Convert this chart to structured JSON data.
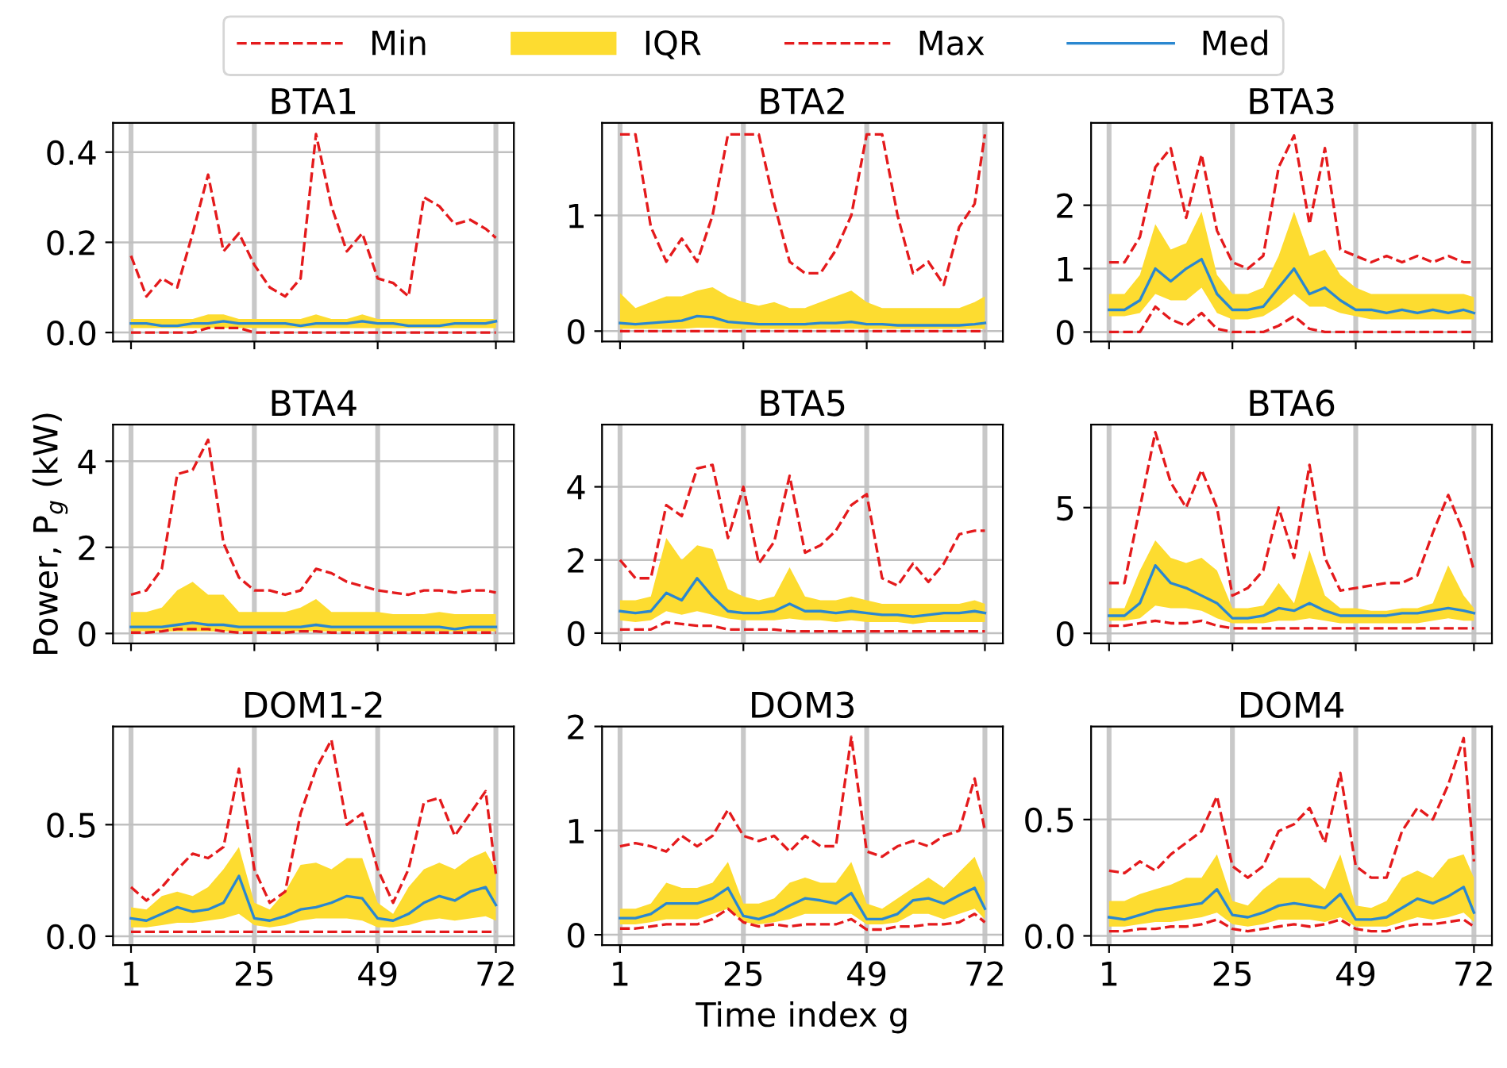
{
  "chart_data": [
    {
      "type": "line",
      "title": "BTA1",
      "legend": "top",
      "grid": true,
      "tick_labels": "y",
      "x": [
        1,
        4,
        7,
        10,
        13,
        16,
        19,
        22,
        25,
        28,
        31,
        34,
        37,
        40,
        43,
        46,
        49,
        52,
        55,
        58,
        61,
        64,
        67,
        70,
        72
      ],
      "xlim": [
        -2.5,
        75.5
      ],
      "xticks": [
        1,
        25,
        49,
        72
      ],
      "ylim": [
        -0.02,
        0.465
      ],
      "yticks": [
        {
          "value": 0,
          "label": "0.0"
        },
        {
          "value": 0.2,
          "label": "0.2"
        },
        {
          "value": 0.4,
          "label": "0.4"
        }
      ],
      "series": [
        {
          "name": "Min",
          "color": "#e41a1c",
          "line_style": "dashed",
          "values": [
            0.0,
            0.0,
            0.0,
            0.0,
            0.0,
            0.01,
            0.01,
            0.01,
            0.0,
            0.0,
            0.0,
            0.0,
            0.0,
            0.0,
            0.0,
            0.0,
            0.0,
            0.0,
            0.0,
            0.0,
            0.0,
            0.0,
            0.0,
            0.0,
            0.0
          ]
        },
        {
          "name": "IQR",
          "type": "area",
          "color": "#fddc30",
          "values": [
            null,
            null,
            null,
            null,
            null,
            null,
            null,
            null,
            null,
            null,
            null,
            null,
            null,
            null,
            null,
            null,
            null,
            null,
            null,
            null,
            null,
            null,
            null,
            null,
            null
          ]
        },
        {
          "name": "Max",
          "color": "#e41a1c",
          "line_style": "dashed",
          "values": [
            0.17,
            0.08,
            0.12,
            0.1,
            0.22,
            0.35,
            0.18,
            0.22,
            0.15,
            0.1,
            0.08,
            0.12,
            0.44,
            0.28,
            0.18,
            0.22,
            0.12,
            0.11,
            0.08,
            0.3,
            0.28,
            0.24,
            0.25,
            0.23,
            0.21
          ]
        },
        {
          "name": "Med",
          "color": "#2a87d0",
          "line_style": "solid",
          "values": [
            0.02,
            0.02,
            0.015,
            0.015,
            0.02,
            0.02,
            0.025,
            0.02,
            0.02,
            0.02,
            0.02,
            0.015,
            0.02,
            0.02,
            0.02,
            0.025,
            0.02,
            0.02,
            0.015,
            0.015,
            0.015,
            0.02,
            0.02,
            0.02,
            0.025
          ],
          "lower": [
            0.01,
            0.01,
            0.01,
            0.01,
            0.01,
            0.01,
            0.01,
            0.01,
            0.01,
            0.01,
            0.01,
            0.01,
            0.01,
            0.01,
            0.01,
            0.01,
            0.01,
            0.01,
            0.01,
            0.01,
            0.01,
            0.01,
            0.01,
            0.01,
            0.01
          ],
          "upper": [
            0.03,
            0.03,
            0.03,
            0.03,
            0.03,
            0.04,
            0.04,
            0.03,
            0.03,
            0.03,
            0.03,
            0.03,
            0.04,
            0.03,
            0.03,
            0.04,
            0.03,
            0.03,
            0.03,
            0.03,
            0.03,
            0.03,
            0.03,
            0.03,
            0.03
          ]
        }
      ]
    },
    {
      "type": "line",
      "title": "BTA2",
      "grid": true,
      "tick_labels": "y",
      "x": [
        1,
        4,
        7,
        10,
        13,
        16,
        19,
        22,
        25,
        28,
        31,
        34,
        37,
        40,
        43,
        46,
        49,
        52,
        55,
        58,
        61,
        64,
        67,
        70,
        72
      ],
      "xlim": [
        -2.5,
        75.5
      ],
      "xticks": [
        1,
        25,
        49,
        72
      ],
      "ylim": [
        -0.09,
        1.8
      ],
      "yticks": [
        0,
        1
      ],
      "series": [
        {
          "name": "Min",
          "color": "#e41a1c",
          "line_style": "dashed",
          "values": [
            0.0,
            0.0,
            0.0,
            0.0,
            0.0,
            0.0,
            0.0,
            0.0,
            0.0,
            0.0,
            0.0,
            0.0,
            0.0,
            0.0,
            0.0,
            0.0,
            0.0,
            0.0,
            0.0,
            0.0,
            0.0,
            0.0,
            0.0,
            0.0,
            0.0
          ]
        },
        {
          "type": "area",
          "color": "#fddc30",
          "values": [
            null,
            null,
            null,
            null,
            null,
            null,
            null,
            null,
            null,
            null,
            null,
            null,
            null,
            null,
            null,
            null,
            null,
            null,
            null,
            null,
            null,
            null,
            null,
            null,
            null
          ]
        },
        {
          "name": "Max",
          "color": "#e41a1c",
          "line_style": "dashed",
          "values": [
            1.7,
            1.7,
            0.9,
            0.6,
            0.8,
            0.6,
            1.0,
            1.7,
            1.7,
            1.7,
            1.1,
            0.6,
            0.5,
            0.5,
            0.7,
            1.0,
            1.7,
            1.7,
            1.0,
            0.5,
            0.6,
            0.4,
            0.9,
            1.1,
            1.7
          ]
        },
        {
          "name": "Med",
          "color": "#2a87d0",
          "line_style": "solid",
          "values": [
            0.07,
            0.06,
            0.07,
            0.08,
            0.09,
            0.13,
            0.12,
            0.08,
            0.07,
            0.06,
            0.06,
            0.06,
            0.06,
            0.07,
            0.07,
            0.08,
            0.06,
            0.06,
            0.05,
            0.05,
            0.05,
            0.05,
            0.05,
            0.06,
            0.07
          ],
          "lower": [
            0.02,
            0.02,
            0.02,
            0.02,
            0.02,
            0.03,
            0.03,
            0.02,
            0.02,
            0.02,
            0.02,
            0.02,
            0.02,
            0.02,
            0.02,
            0.02,
            0.02,
            0.02,
            0.02,
            0.02,
            0.02,
            0.02,
            0.02,
            0.02,
            0.02
          ],
          "upper": [
            0.33,
            0.2,
            0.25,
            0.3,
            0.3,
            0.35,
            0.38,
            0.3,
            0.25,
            0.22,
            0.25,
            0.2,
            0.2,
            0.25,
            0.3,
            0.35,
            0.25,
            0.2,
            0.2,
            0.2,
            0.2,
            0.2,
            0.2,
            0.25,
            0.3
          ]
        }
      ]
    },
    {
      "type": "line",
      "title": "BTA3",
      "grid": true,
      "tick_labels": "y",
      "x": [
        1,
        4,
        7,
        10,
        13,
        16,
        19,
        22,
        25,
        28,
        31,
        34,
        37,
        40,
        43,
        46,
        49,
        52,
        55,
        58,
        61,
        64,
        67,
        70,
        72
      ],
      "xlim": [
        -2.5,
        75.5
      ],
      "xticks": [
        1,
        25,
        49,
        72
      ],
      "ylim": [
        -0.15,
        3.3
      ],
      "yticks": [
        0,
        1,
        2
      ],
      "series": [
        {
          "name": "Min",
          "color": "#e41a1c",
          "line_style": "dashed",
          "values": [
            0.0,
            0.0,
            0.0,
            0.4,
            0.2,
            0.1,
            0.3,
            0.05,
            0.0,
            0.0,
            0.0,
            0.1,
            0.25,
            0.05,
            0.0,
            0.0,
            0.0,
            0.0,
            0.0,
            0.0,
            0.0,
            0.0,
            0.0,
            0.0,
            0.0
          ]
        },
        {
          "type": "area",
          "color": "#fddc30",
          "values": [
            null,
            null,
            null,
            null,
            null,
            null,
            null,
            null,
            null,
            null,
            null,
            null,
            null,
            null,
            null,
            null,
            null,
            null,
            null,
            null,
            null,
            null,
            null,
            null,
            null
          ]
        },
        {
          "name": "Max",
          "color": "#e41a1c",
          "line_style": "dashed",
          "values": [
            1.1,
            1.1,
            1.5,
            2.6,
            2.9,
            1.8,
            2.8,
            1.6,
            1.1,
            1.0,
            1.2,
            2.6,
            3.1,
            1.7,
            2.9,
            1.3,
            1.2,
            1.1,
            1.2,
            1.1,
            1.2,
            1.1,
            1.2,
            1.1,
            1.1
          ]
        },
        {
          "name": "Med",
          "color": "#2a87d0",
          "line_style": "solid",
          "values": [
            0.35,
            0.35,
            0.5,
            1.0,
            0.8,
            1.0,
            1.15,
            0.6,
            0.35,
            0.35,
            0.4,
            0.7,
            1.0,
            0.6,
            0.7,
            0.5,
            0.35,
            0.35,
            0.3,
            0.35,
            0.3,
            0.35,
            0.3,
            0.35,
            0.3
          ],
          "lower": [
            0.25,
            0.25,
            0.3,
            0.6,
            0.5,
            0.5,
            0.7,
            0.3,
            0.2,
            0.2,
            0.25,
            0.4,
            0.6,
            0.4,
            0.4,
            0.3,
            0.25,
            0.2,
            0.2,
            0.2,
            0.2,
            0.2,
            0.2,
            0.2,
            0.2
          ],
          "upper": [
            0.6,
            0.6,
            0.9,
            1.7,
            1.3,
            1.4,
            1.9,
            0.9,
            0.6,
            0.6,
            0.7,
            1.2,
            1.9,
            1.2,
            1.3,
            0.9,
            0.7,
            0.6,
            0.6,
            0.6,
            0.6,
            0.6,
            0.6,
            0.6,
            0.55
          ]
        }
      ]
    },
    {
      "type": "line",
      "title": "BTA4",
      "ylabel": "Power, P$_{g}$ (kW)",
      "grid": true,
      "tick_labels": "y",
      "x": [
        1,
        4,
        7,
        10,
        13,
        16,
        19,
        22,
        25,
        28,
        31,
        34,
        37,
        40,
        43,
        46,
        49,
        52,
        55,
        58,
        61,
        64,
        67,
        70,
        72
      ],
      "xlim": [
        -2.5,
        75.5
      ],
      "xticks": [
        1,
        25,
        49,
        72
      ],
      "ylim": [
        -0.23,
        4.85
      ],
      "yticks": [
        0,
        2,
        4
      ],
      "series": [
        {
          "name": "Min",
          "color": "#e41a1c",
          "line_style": "dashed",
          "values": [
            0.02,
            0.02,
            0.05,
            0.1,
            0.1,
            0.1,
            0.05,
            0.02,
            0.02,
            0.02,
            0.02,
            0.05,
            0.05,
            0.02,
            0.02,
            0.02,
            0.02,
            0.02,
            0.02,
            0.02,
            0.02,
            0.02,
            0.02,
            0.02,
            0.02
          ]
        },
        {
          "type": "area",
          "color": "#fddc30",
          "values": [
            null,
            null,
            null,
            null,
            null,
            null,
            null,
            null,
            null,
            null,
            null,
            null,
            null,
            null,
            null,
            null,
            null,
            null,
            null,
            null,
            null,
            null,
            null,
            null,
            null
          ]
        },
        {
          "name": "Max",
          "color": "#e41a1c",
          "line_style": "dashed",
          "values": [
            0.9,
            1.0,
            1.5,
            3.7,
            3.8,
            4.5,
            2.1,
            1.3,
            1.0,
            1.0,
            0.9,
            1.0,
            1.5,
            1.4,
            1.2,
            1.1,
            1.0,
            0.95,
            0.9,
            1.0,
            1.0,
            0.95,
            1.0,
            1.0,
            0.95
          ]
        },
        {
          "name": "Med",
          "color": "#2a87d0",
          "line_style": "solid",
          "values": [
            0.15,
            0.15,
            0.15,
            0.2,
            0.25,
            0.2,
            0.2,
            0.15,
            0.15,
            0.15,
            0.15,
            0.15,
            0.2,
            0.15,
            0.15,
            0.15,
            0.15,
            0.15,
            0.15,
            0.15,
            0.15,
            0.1,
            0.15,
            0.15,
            0.15
          ],
          "lower": [
            0.05,
            0.05,
            0.05,
            0.05,
            0.05,
            0.05,
            0.05,
            0.05,
            0.05,
            0.05,
            0.05,
            0.05,
            0.05,
            0.05,
            0.05,
            0.05,
            0.05,
            0.05,
            0.05,
            0.05,
            0.05,
            0.05,
            0.05,
            0.05,
            0.05
          ],
          "upper": [
            0.5,
            0.5,
            0.6,
            1.0,
            1.2,
            0.9,
            0.9,
            0.5,
            0.5,
            0.5,
            0.5,
            0.6,
            0.8,
            0.5,
            0.5,
            0.5,
            0.5,
            0.45,
            0.45,
            0.45,
            0.5,
            0.45,
            0.45,
            0.45,
            0.45
          ]
        }
      ]
    },
    {
      "type": "line",
      "title": "BTA5",
      "grid": true,
      "tick_labels": "y",
      "x": [
        1,
        4,
        7,
        10,
        13,
        16,
        19,
        22,
        25,
        28,
        31,
        34,
        37,
        40,
        43,
        46,
        49,
        52,
        55,
        58,
        61,
        64,
        67,
        70,
        72
      ],
      "xlim": [
        -2.5,
        75.5
      ],
      "xticks": [
        1,
        25,
        49,
        72
      ],
      "ylim": [
        -0.28,
        5.7
      ],
      "yticks": [
        0,
        2,
        4
      ],
      "series": [
        {
          "name": "Min",
          "color": "#e41a1c",
          "line_style": "dashed",
          "values": [
            0.1,
            0.1,
            0.1,
            0.3,
            0.25,
            0.2,
            0.2,
            0.1,
            0.1,
            0.1,
            0.1,
            0.05,
            0.05,
            0.05,
            0.05,
            0.05,
            0.05,
            0.05,
            0.05,
            0.05,
            0.05,
            0.05,
            0.05,
            0.05,
            0.05
          ]
        },
        {
          "type": "area",
          "color": "#fddc30",
          "values": [
            null,
            null,
            null,
            null,
            null,
            null,
            null,
            null,
            null,
            null,
            null,
            null,
            null,
            null,
            null,
            null,
            null,
            null,
            null,
            null,
            null,
            null,
            null,
            null,
            null
          ]
        },
        {
          "name": "Max",
          "color": "#e41a1c",
          "line_style": "dashed",
          "values": [
            2.0,
            1.5,
            1.5,
            3.5,
            3.2,
            4.5,
            4.6,
            2.6,
            4.0,
            1.9,
            2.5,
            4.3,
            2.2,
            2.4,
            2.8,
            3.5,
            3.8,
            1.5,
            1.3,
            1.9,
            1.4,
            1.9,
            2.7,
            2.8,
            2.8
          ]
        },
        {
          "name": "Med",
          "color": "#2a87d0",
          "line_style": "solid",
          "values": [
            0.6,
            0.55,
            0.6,
            1.1,
            0.9,
            1.5,
            1.0,
            0.6,
            0.55,
            0.55,
            0.6,
            0.8,
            0.6,
            0.6,
            0.55,
            0.6,
            0.55,
            0.5,
            0.5,
            0.45,
            0.5,
            0.55,
            0.55,
            0.6,
            0.55
          ],
          "lower": [
            0.35,
            0.3,
            0.35,
            0.6,
            0.5,
            0.6,
            0.5,
            0.4,
            0.35,
            0.35,
            0.35,
            0.4,
            0.35,
            0.35,
            0.3,
            0.35,
            0.3,
            0.3,
            0.3,
            0.25,
            0.3,
            0.3,
            0.3,
            0.3,
            0.3
          ],
          "upper": [
            0.9,
            0.9,
            1.0,
            2.6,
            2.0,
            2.4,
            2.3,
            1.2,
            1.0,
            0.9,
            1.0,
            1.8,
            1.0,
            0.9,
            0.9,
            1.0,
            0.9,
            0.8,
            0.8,
            0.8,
            0.8,
            0.8,
            0.8,
            0.9,
            0.8
          ]
        }
      ]
    },
    {
      "type": "line",
      "title": "BTA6",
      "grid": true,
      "tick_labels": "y",
      "x": [
        1,
        4,
        7,
        10,
        13,
        16,
        19,
        22,
        25,
        28,
        31,
        34,
        37,
        40,
        43,
        46,
        49,
        52,
        55,
        58,
        61,
        64,
        67,
        70,
        72
      ],
      "xlim": [
        -2.5,
        75.5
      ],
      "xticks": [
        1,
        25,
        49,
        72
      ],
      "ylim": [
        -0.4,
        8.3
      ],
      "yticks": [
        0,
        5
      ],
      "series": [
        {
          "name": "Min",
          "color": "#e41a1c",
          "line_style": "dashed",
          "values": [
            0.3,
            0.3,
            0.4,
            0.5,
            0.4,
            0.4,
            0.5,
            0.3,
            0.2,
            0.2,
            0.2,
            0.2,
            0.2,
            0.2,
            0.2,
            0.2,
            0.2,
            0.2,
            0.2,
            0.2,
            0.2,
            0.2,
            0.2,
            0.2,
            0.2
          ]
        },
        {
          "type": "area",
          "color": "#fddc30",
          "values": [
            null,
            null,
            null,
            null,
            null,
            null,
            null,
            null,
            null,
            null,
            null,
            null,
            null,
            null,
            null,
            null,
            null,
            null,
            null,
            null,
            null,
            null,
            null,
            null,
            null
          ]
        },
        {
          "name": "Max",
          "color": "#e41a1c",
          "line_style": "dashed",
          "values": [
            2.0,
            2.0,
            5.0,
            8.0,
            6.0,
            5.0,
            6.5,
            5.0,
            1.5,
            1.8,
            2.5,
            5.0,
            3.0,
            6.7,
            3.0,
            1.7,
            1.8,
            1.9,
            2.0,
            2.0,
            2.3,
            4.0,
            5.5,
            4.0,
            2.5
          ]
        },
        {
          "name": "Med",
          "color": "#2a87d0",
          "line_style": "solid",
          "values": [
            0.7,
            0.7,
            1.2,
            2.7,
            2.0,
            1.8,
            1.5,
            1.2,
            0.6,
            0.6,
            0.7,
            1.0,
            0.9,
            1.2,
            0.9,
            0.7,
            0.7,
            0.7,
            0.7,
            0.8,
            0.8,
            0.9,
            1.0,
            0.9,
            0.8
          ],
          "lower": [
            0.5,
            0.5,
            0.6,
            1.1,
            1.0,
            1.0,
            0.9,
            0.6,
            0.4,
            0.4,
            0.4,
            0.5,
            0.5,
            0.6,
            0.5,
            0.4,
            0.4,
            0.4,
            0.4,
            0.4,
            0.4,
            0.5,
            0.6,
            0.5,
            0.5
          ],
          "upper": [
            1.0,
            1.0,
            2.5,
            3.7,
            3.0,
            2.8,
            3.0,
            2.5,
            1.0,
            1.0,
            1.1,
            2.0,
            1.2,
            3.3,
            1.5,
            1.0,
            1.0,
            0.9,
            0.9,
            1.0,
            1.0,
            1.2,
            2.7,
            1.5,
            1.0
          ]
        }
      ]
    },
    {
      "type": "line",
      "title": "DOM1-2",
      "grid": true,
      "x": [
        1,
        4,
        7,
        10,
        13,
        16,
        19,
        22,
        25,
        28,
        31,
        34,
        37,
        40,
        43,
        46,
        49,
        52,
        55,
        58,
        61,
        64,
        67,
        70,
        72
      ],
      "xlim": [
        -2.5,
        75.5
      ],
      "xticks": [
        1,
        25,
        49,
        72
      ],
      "ylim": [
        -0.04,
        0.94
      ],
      "yticks": [
        {
          "value": 0,
          "label": "0.0"
        },
        0.5
      ],
      "series": [
        {
          "name": "Min",
          "color": "#e41a1c",
          "line_style": "dashed",
          "values": [
            0.02,
            0.02,
            0.02,
            0.02,
            0.02,
            0.02,
            0.02,
            0.02,
            0.02,
            0.02,
            0.02,
            0.02,
            0.02,
            0.02,
            0.02,
            0.02,
            0.02,
            0.02,
            0.02,
            0.02,
            0.02,
            0.02,
            0.02,
            0.02,
            0.02
          ]
        },
        {
          "type": "area",
          "color": "#fddc30",
          "values": [
            null,
            null,
            null,
            null,
            null,
            null,
            null,
            null,
            null,
            null,
            null,
            null,
            null,
            null,
            null,
            null,
            null,
            null,
            null,
            null,
            null,
            null,
            null,
            null,
            null
          ]
        },
        {
          "name": "Max",
          "color": "#e41a1c",
          "line_style": "dashed",
          "values": [
            0.22,
            0.16,
            0.22,
            0.3,
            0.37,
            0.35,
            0.4,
            0.75,
            0.3,
            0.15,
            0.2,
            0.55,
            0.75,
            0.88,
            0.5,
            0.55,
            0.3,
            0.15,
            0.3,
            0.6,
            0.62,
            0.45,
            0.55,
            0.65,
            0.28
          ]
        },
        {
          "name": "Med",
          "color": "#2a87d0",
          "line_style": "solid",
          "values": [
            0.08,
            0.07,
            0.1,
            0.13,
            0.11,
            0.12,
            0.15,
            0.27,
            0.08,
            0.07,
            0.09,
            0.12,
            0.13,
            0.15,
            0.18,
            0.17,
            0.08,
            0.07,
            0.1,
            0.15,
            0.18,
            0.16,
            0.2,
            0.22,
            0.14
          ],
          "lower": [
            0.04,
            0.04,
            0.05,
            0.06,
            0.06,
            0.07,
            0.08,
            0.1,
            0.05,
            0.04,
            0.05,
            0.07,
            0.08,
            0.08,
            0.08,
            0.07,
            0.04,
            0.04,
            0.05,
            0.07,
            0.08,
            0.07,
            0.08,
            0.09,
            0.07
          ],
          "upper": [
            0.13,
            0.12,
            0.18,
            0.2,
            0.18,
            0.22,
            0.3,
            0.4,
            0.15,
            0.12,
            0.2,
            0.32,
            0.33,
            0.3,
            0.35,
            0.35,
            0.15,
            0.1,
            0.22,
            0.3,
            0.33,
            0.3,
            0.35,
            0.38,
            0.3
          ]
        }
      ]
    },
    {
      "type": "line",
      "title": "DOM3",
      "xlabel": "Time index g",
      "grid": true,
      "x": [
        1,
        4,
        7,
        10,
        13,
        16,
        19,
        22,
        25,
        28,
        31,
        34,
        37,
        40,
        43,
        46,
        49,
        52,
        55,
        58,
        61,
        64,
        67,
        70,
        72
      ],
      "xlim": [
        -2.5,
        75.5
      ],
      "xticks": [
        1,
        25,
        49,
        72
      ],
      "ylim": [
        -0.1,
        2.0
      ],
      "yticks": [
        0,
        1,
        2
      ],
      "series": [
        {
          "name": "Min",
          "color": "#e41a1c",
          "line_style": "dashed",
          "values": [
            0.06,
            0.06,
            0.08,
            0.1,
            0.1,
            0.1,
            0.15,
            0.25,
            0.12,
            0.08,
            0.1,
            0.08,
            0.1,
            0.1,
            0.1,
            0.15,
            0.05,
            0.05,
            0.08,
            0.08,
            0.1,
            0.1,
            0.12,
            0.2,
            0.12
          ]
        },
        {
          "type": "area",
          "color": "#fddc30",
          "values": [
            null,
            null,
            null,
            null,
            null,
            null,
            null,
            null,
            null,
            null,
            null,
            null,
            null,
            null,
            null,
            null,
            null,
            null,
            null,
            null,
            null,
            null,
            null,
            null,
            null
          ]
        },
        {
          "name": "Max",
          "color": "#e41a1c",
          "line_style": "dashed",
          "values": [
            0.85,
            0.88,
            0.85,
            0.8,
            0.95,
            0.85,
            0.95,
            1.2,
            0.95,
            0.9,
            0.95,
            0.8,
            0.95,
            0.85,
            0.85,
            1.9,
            0.8,
            0.75,
            0.85,
            0.9,
            0.85,
            0.95,
            1.0,
            1.5,
            1.0
          ]
        },
        {
          "name": "Med",
          "color": "#2a87d0",
          "line_style": "solid",
          "values": [
            0.16,
            0.16,
            0.2,
            0.3,
            0.3,
            0.3,
            0.35,
            0.45,
            0.18,
            0.15,
            0.2,
            0.28,
            0.35,
            0.33,
            0.3,
            0.4,
            0.15,
            0.15,
            0.2,
            0.33,
            0.35,
            0.3,
            0.38,
            0.45,
            0.25
          ],
          "lower": [
            0.1,
            0.1,
            0.12,
            0.15,
            0.15,
            0.15,
            0.2,
            0.25,
            0.12,
            0.1,
            0.12,
            0.15,
            0.2,
            0.2,
            0.2,
            0.2,
            0.1,
            0.1,
            0.12,
            0.2,
            0.2,
            0.15,
            0.2,
            0.25,
            0.15
          ],
          "upper": [
            0.25,
            0.25,
            0.3,
            0.5,
            0.45,
            0.45,
            0.5,
            0.7,
            0.3,
            0.3,
            0.35,
            0.5,
            0.55,
            0.5,
            0.5,
            0.7,
            0.3,
            0.25,
            0.35,
            0.45,
            0.55,
            0.45,
            0.6,
            0.75,
            0.5
          ]
        }
      ]
    },
    {
      "type": "line",
      "title": "DOM4",
      "grid": true,
      "x": [
        1,
        4,
        7,
        10,
        13,
        16,
        19,
        22,
        25,
        28,
        31,
        34,
        37,
        40,
        43,
        46,
        49,
        52,
        55,
        58,
        61,
        64,
        67,
        70,
        72
      ],
      "xlim": [
        -2.5,
        75.5
      ],
      "xticks": [
        1,
        25,
        49,
        72
      ],
      "ylim": [
        -0.04,
        0.9
      ],
      "yticks": [
        {
          "value": 0,
          "label": "0.0"
        },
        0.5
      ],
      "series": [
        {
          "name": "Min",
          "color": "#e41a1c",
          "line_style": "dashed",
          "values": [
            0.02,
            0.02,
            0.03,
            0.03,
            0.04,
            0.04,
            0.05,
            0.07,
            0.03,
            0.02,
            0.03,
            0.04,
            0.05,
            0.04,
            0.05,
            0.07,
            0.03,
            0.02,
            0.02,
            0.04,
            0.05,
            0.05,
            0.06,
            0.07,
            0.04
          ]
        },
        {
          "type": "area",
          "color": "#fddc30",
          "values": [
            null,
            null,
            null,
            null,
            null,
            null,
            null,
            null,
            null,
            null,
            null,
            null,
            null,
            null,
            null,
            null,
            null,
            null,
            null,
            null,
            null,
            null,
            null,
            null,
            null
          ]
        },
        {
          "name": "Max",
          "color": "#e41a1c",
          "line_style": "dashed",
          "values": [
            0.28,
            0.27,
            0.32,
            0.28,
            0.35,
            0.4,
            0.45,
            0.6,
            0.3,
            0.25,
            0.3,
            0.45,
            0.48,
            0.55,
            0.4,
            0.7,
            0.3,
            0.25,
            0.25,
            0.45,
            0.55,
            0.5,
            0.65,
            0.85,
            0.32
          ]
        },
        {
          "name": "Med",
          "color": "#2a87d0",
          "line_style": "solid",
          "values": [
            0.08,
            0.07,
            0.09,
            0.11,
            0.12,
            0.13,
            0.14,
            0.2,
            0.09,
            0.08,
            0.1,
            0.13,
            0.14,
            0.13,
            0.12,
            0.18,
            0.07,
            0.07,
            0.08,
            0.12,
            0.16,
            0.14,
            0.17,
            0.21,
            0.1
          ],
          "lower": [
            0.04,
            0.04,
            0.05,
            0.06,
            0.06,
            0.07,
            0.08,
            0.1,
            0.05,
            0.04,
            0.05,
            0.07,
            0.07,
            0.07,
            0.06,
            0.08,
            0.04,
            0.04,
            0.04,
            0.06,
            0.08,
            0.07,
            0.08,
            0.1,
            0.06
          ],
          "upper": [
            0.15,
            0.15,
            0.18,
            0.2,
            0.22,
            0.25,
            0.25,
            0.35,
            0.15,
            0.13,
            0.2,
            0.25,
            0.25,
            0.25,
            0.2,
            0.35,
            0.13,
            0.12,
            0.15,
            0.25,
            0.28,
            0.25,
            0.33,
            0.35,
            0.25
          ]
        }
      ]
    }
  ]
}
